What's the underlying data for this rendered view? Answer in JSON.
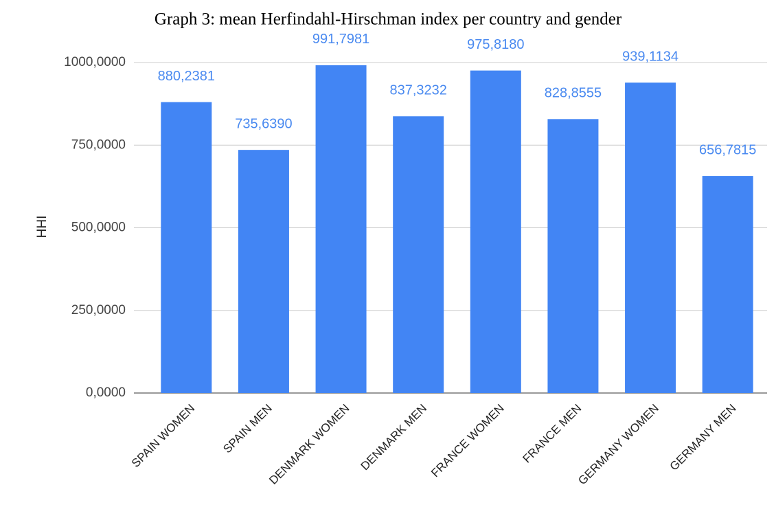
{
  "chart_data": {
    "type": "bar",
    "title": "Graph 3: mean Herfindahl-Hirschman index per country and gender",
    "y_label": "HHI",
    "categories": [
      "SPAIN WOMEN",
      "SPAIN MEN",
      "DENMARK WOMEN",
      "DENMARK MEN",
      "FRANCE WOMEN",
      "FRANCE MEN",
      "GERMANY WOMEN",
      "GERMANY MEN"
    ],
    "values": [
      880.2381,
      735.639,
      991.7981,
      837.3232,
      975.818,
      828.8555,
      939.1134,
      656.7815
    ],
    "value_labels": [
      "880,2381",
      "735,6390",
      "991,7981",
      "837,3232",
      "975,8180",
      "828,8555",
      "939,1134",
      "656,7815"
    ],
    "color": "#4285f4",
    "ylim": [
      0,
      1000
    ],
    "yticks": [
      {
        "value": 0,
        "label": "0,0000"
      },
      {
        "value": 250,
        "label": "250,0000"
      },
      {
        "value": 500,
        "label": "500,0000"
      },
      {
        "value": 750,
        "label": "750,0000"
      },
      {
        "value": 1000,
        "label": "1000,0000"
      }
    ],
    "grid": true
  }
}
